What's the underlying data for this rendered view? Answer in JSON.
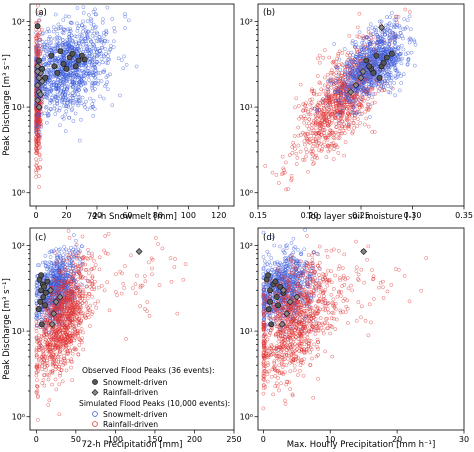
{
  "colors": {
    "snowmelt_sim": "#3b5bdb",
    "rainfall_sim": "#e03131",
    "obs_snowmelt": "#555555",
    "obs_rainfall": "#8a8a8a"
  },
  "legend": {
    "observed_title": "Observed Flood Peaks (36 events):",
    "observed_snowmelt": "Snowmelt-driven",
    "observed_rainfall": "Rainfall-driven",
    "simulated_title": "Simulated Flood Peaks (10,000 events):",
    "simulated_snowmelt": "Snowmelt-driven",
    "simulated_rainfall": "Rainfall-driven"
  },
  "chart_data": [
    {
      "type": "scatter",
      "panel_label": "(a)",
      "xlabel": "72-h Snowmelt [mm]",
      "ylabel": "Peak Discharge [m³ s⁻¹]",
      "xlim": [
        -4,
        130
      ],
      "ylim": [
        0.7,
        160
      ],
      "yscale": "log",
      "xticks": [
        0,
        20,
        40,
        60,
        80,
        100,
        120
      ],
      "yticks": [
        1,
        10,
        100
      ],
      "ytick_labels": [
        "10⁰",
        "10¹",
        "10²"
      ],
      "grid": false,
      "clouds": [
        {
          "series": "Rainfall-driven (simulated)",
          "color_key": "rainfall_sim",
          "n": 520,
          "x_mean": 1.0,
          "x_sd": 1.2,
          "x_min": 0,
          "y_log_mean": 1.15,
          "y_log_sd": 0.38,
          "corr": 0.0,
          "seed": 11
        },
        {
          "series": "Snowmelt-driven (simulated)",
          "color_key": "snowmelt_sim",
          "n": 1100,
          "x_mean": 20,
          "x_sd": 14,
          "x_min": 0,
          "y_log_mean": 1.45,
          "y_log_sd": 0.28,
          "corr": 0.35,
          "seed": 12
        }
      ],
      "observed_snowmelt": [
        [
          1,
          88
        ],
        [
          2,
          35
        ],
        [
          4,
          28
        ],
        [
          6,
          22
        ],
        [
          10,
          40
        ],
        [
          12,
          30
        ],
        [
          14,
          25
        ],
        [
          16,
          45
        ],
        [
          18,
          32
        ],
        [
          20,
          28
        ],
        [
          22,
          38
        ],
        [
          24,
          42
        ],
        [
          26,
          30
        ],
        [
          28,
          35
        ],
        [
          30,
          40
        ],
        [
          32,
          36
        ]
      ],
      "observed_rainfall": [
        [
          1,
          18
        ],
        [
          1,
          12
        ],
        [
          2,
          22
        ],
        [
          1,
          30
        ],
        [
          2,
          15
        ],
        [
          3,
          25
        ],
        [
          2,
          10
        ],
        [
          4,
          20
        ],
        [
          3,
          14
        ],
        [
          1,
          26
        ]
      ]
    },
    {
      "type": "scatter",
      "panel_label": "(b)",
      "xlabel": "Top layer soil moisture [-]",
      "ylabel": "",
      "xlim": [
        0.15,
        0.35
      ],
      "ylim": [
        0.7,
        160
      ],
      "yscale": "log",
      "xticks": [
        0.15,
        0.2,
        0.25,
        0.3,
        0.35
      ],
      "xtick_labels": [
        "0.15",
        "0.20",
        "0.25",
        "0.30",
        "0.35"
      ],
      "yticks": [
        1,
        10,
        100
      ],
      "ytick_labels": [
        "10⁰",
        "10¹",
        "10²"
      ],
      "grid": false,
      "clouds": [
        {
          "series": "Rainfall-driven (simulated)",
          "color_key": "rainfall_sim",
          "n": 950,
          "x_mean": 0.232,
          "x_sd": 0.022,
          "y_log_mean": 1.1,
          "y_log_sd": 0.35,
          "corr": 0.72,
          "seed": 21
        },
        {
          "series": "Snowmelt-driven (simulated)",
          "color_key": "snowmelt_sim",
          "n": 850,
          "x_mean": 0.262,
          "x_sd": 0.016,
          "y_log_mean": 1.5,
          "y_log_sd": 0.22,
          "corr": 0.55,
          "seed": 22
        }
      ],
      "observed_snowmelt": [
        [
          0.255,
          35
        ],
        [
          0.26,
          28
        ],
        [
          0.265,
          40
        ],
        [
          0.27,
          30
        ],
        [
          0.268,
          22
        ],
        [
          0.272,
          33
        ],
        [
          0.275,
          38
        ],
        [
          0.262,
          25
        ],
        [
          0.258,
          30
        ],
        [
          0.28,
          42
        ]
      ],
      "observed_rainfall": [
        [
          0.27,
          85
        ],
        [
          0.245,
          18
        ],
        [
          0.25,
          22
        ],
        [
          0.24,
          15
        ],
        [
          0.252,
          26
        ]
      ]
    },
    {
      "type": "scatter",
      "panel_label": "(c)",
      "xlabel": "72-h Precipitation [mm]",
      "ylabel": "Peak Discharge [m³ s⁻¹]",
      "xlim": [
        -8,
        250
      ],
      "ylim": [
        0.7,
        160
      ],
      "yscale": "log",
      "xticks": [
        0,
        50,
        100,
        150,
        200,
        250
      ],
      "yticks": [
        1,
        10,
        100
      ],
      "ytick_labels": [
        "10⁰",
        "10¹",
        "10²"
      ],
      "grid": false,
      "clouds": [
        {
          "series": "Snowmelt-driven (simulated)",
          "color_key": "snowmelt_sim",
          "n": 750,
          "x_mean": 25,
          "x_sd": 14,
          "x_min": 0,
          "y_log_mean": 1.5,
          "y_log_sd": 0.22,
          "corr": 0.3,
          "seed": 31
        },
        {
          "series": "Rainfall-driven (simulated)",
          "color_key": "rainfall_sim",
          "n": 950,
          "x_mean": 33,
          "x_sd": 18,
          "x_min": 0,
          "y_log_mean": 1.1,
          "y_log_sd": 0.35,
          "corr": 0.55,
          "seed": 32
        },
        {
          "series": "Rainfall-driven (simulated) tail",
          "color_key": "rainfall_sim",
          "n": 55,
          "x_mean": 120,
          "x_sd": 35,
          "x_min": 70,
          "y_log_mean": 1.55,
          "y_log_sd": 0.22,
          "corr": 0.2,
          "seed": 33
        }
      ],
      "observed_snowmelt": [
        [
          4,
          40
        ],
        [
          6,
          30
        ],
        [
          8,
          35
        ],
        [
          5,
          22
        ],
        [
          9,
          25
        ],
        [
          3,
          18
        ],
        [
          7,
          12
        ],
        [
          10,
          33
        ],
        [
          12,
          28
        ],
        [
          14,
          38
        ],
        [
          6,
          45
        ],
        [
          11,
          20
        ]
      ],
      "observed_rainfall": [
        [
          130,
          85
        ],
        [
          18,
          30
        ],
        [
          25,
          22
        ],
        [
          22,
          16
        ],
        [
          30,
          25
        ],
        [
          20,
          12
        ]
      ]
    },
    {
      "type": "scatter",
      "panel_label": "(d)",
      "xlabel": "Max. Hourly Precipitation [mm h⁻¹]",
      "ylabel": "",
      "xlim": [
        -0.8,
        30
      ],
      "ylim": [
        0.7,
        160
      ],
      "yscale": "log",
      "xticks": [
        0,
        10,
        20,
        30
      ],
      "yticks": [
        1,
        10,
        100
      ],
      "ytick_labels": [
        "10⁰",
        "10¹",
        "10²"
      ],
      "grid": false,
      "clouds": [
        {
          "series": "Snowmelt-driven (simulated)",
          "color_key": "snowmelt_sim",
          "n": 750,
          "x_mean": 3.0,
          "x_sd": 2.2,
          "x_min": 0,
          "y_log_mean": 1.5,
          "y_log_sd": 0.22,
          "corr": 0.25,
          "seed": 41
        },
        {
          "series": "Rainfall-driven (simulated)",
          "color_key": "rainfall_sim",
          "n": 950,
          "x_mean": 4.5,
          "x_sd": 3.2,
          "x_min": 0,
          "y_log_mean": 1.1,
          "y_log_sd": 0.35,
          "corr": 0.45,
          "seed": 42
        },
        {
          "series": "Rainfall-driven (simulated) tail",
          "color_key": "rainfall_sim",
          "n": 45,
          "x_mean": 15,
          "x_sd": 4,
          "x_min": 9,
          "y_log_mean": 1.5,
          "y_log_sd": 0.25,
          "corr": 0.2,
          "seed": 43
        }
      ],
      "observed_snowmelt": [
        [
          0.5,
          40
        ],
        [
          1,
          30
        ],
        [
          1.5,
          35
        ],
        [
          1,
          22
        ],
        [
          2,
          25
        ],
        [
          0.8,
          18
        ],
        [
          1.2,
          12
        ],
        [
          2.5,
          33
        ],
        [
          3,
          28
        ],
        [
          1.8,
          38
        ],
        [
          0.7,
          45
        ],
        [
          2.2,
          20
        ]
      ],
      "observed_rainfall": [
        [
          15,
          85
        ],
        [
          3,
          30
        ],
        [
          4,
          22
        ],
        [
          3.5,
          16
        ],
        [
          5,
          25
        ],
        [
          2.8,
          12
        ]
      ]
    }
  ]
}
